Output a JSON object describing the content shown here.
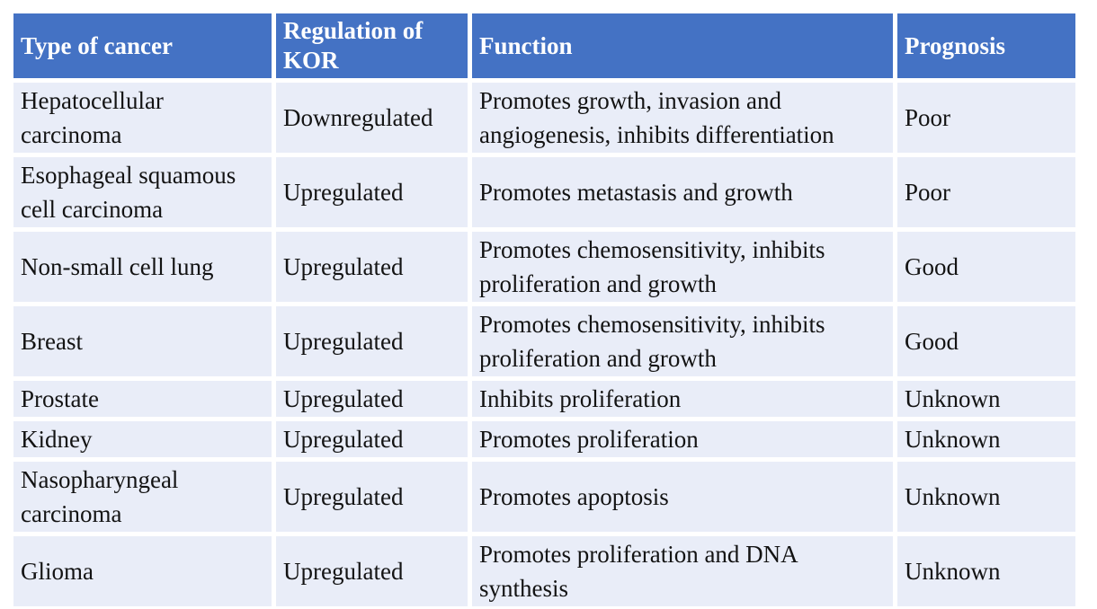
{
  "table": {
    "header": {
      "columns": [
        "Type of cancer",
        "Regulation of KOR",
        "Function",
        "Prognosis"
      ]
    },
    "rows": [
      [
        "Hepatocellular carcinoma",
        "Downregulated",
        "Promotes growth, invasion and angiogenesis, inhibits differentiation",
        "Poor"
      ],
      [
        "Esophageal squamous cell carcinoma",
        "Upregulated",
        "Promotes metastasis and growth",
        "Poor"
      ],
      [
        "Non-small cell lung",
        "Upregulated",
        "Promotes chemosensitivity, inhibits proliferation and growth",
        "Good"
      ],
      [
        "Breast",
        "Upregulated",
        "Promotes chemosensitivity, inhibits proliferation and growth",
        "Good"
      ],
      [
        "Prostate",
        "Upregulated",
        "Inhibits proliferation",
        "Unknown"
      ],
      [
        "Kidney",
        "Upregulated",
        "Promotes proliferation",
        "Unknown"
      ],
      [
        "Nasopharyngeal carcinoma",
        "Upregulated",
        "Promotes apoptosis",
        "Unknown"
      ],
      [
        "Glioma",
        "Upregulated",
        "Promotes proliferation and DNA synthesis",
        "Unknown"
      ]
    ],
    "colors": {
      "header_bg": "#4472C4",
      "header_text": "#FFFFFF",
      "cell_bg": "#E9EDF8",
      "gridline": "#FFFFFF",
      "body_text": "#131313"
    }
  }
}
